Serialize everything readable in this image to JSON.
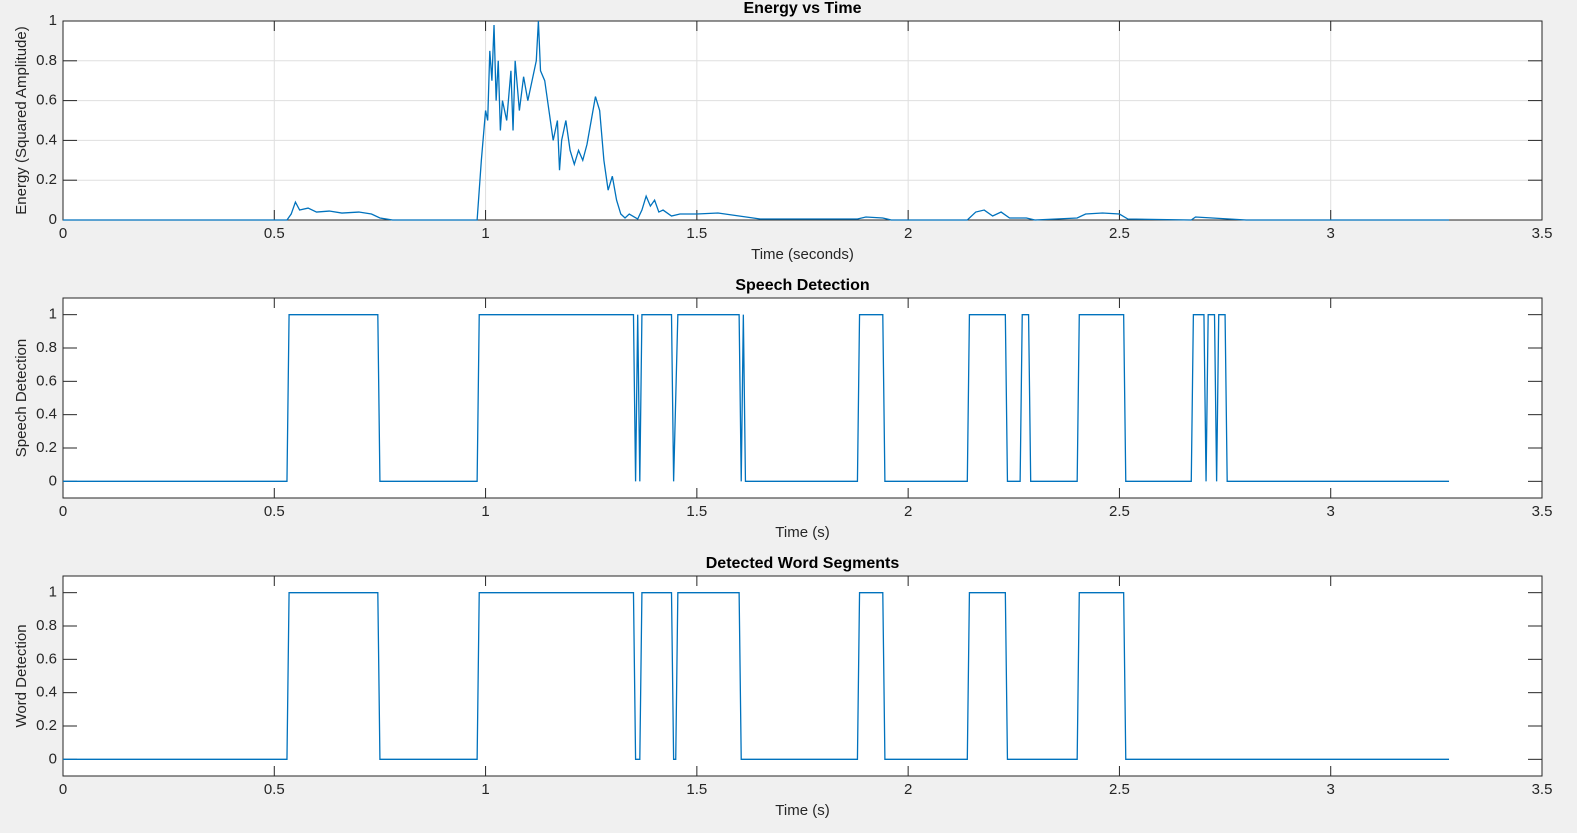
{
  "chart_data": [
    {
      "type": "line",
      "title": "Energy vs Time",
      "xlabel": "Time (seconds)",
      "ylabel": "Energy (Squared Amplitude)",
      "color": "#0072bd",
      "grid": true,
      "xlim": [
        0,
        3.5
      ],
      "xticks": [
        0,
        0.5,
        1,
        1.5,
        2,
        2.5,
        3,
        3.5
      ],
      "ylim": [
        0,
        1
      ],
      "yticks": [
        0,
        0.2,
        0.4,
        0.6,
        0.8,
        1
      ],
      "x": [
        0,
        0.53,
        0.54,
        0.55,
        0.56,
        0.58,
        0.6,
        0.63,
        0.66,
        0.7,
        0.73,
        0.75,
        0.78,
        0.98,
        0.99,
        1.0,
        1.005,
        1.01,
        1.015,
        1.02,
        1.025,
        1.03,
        1.035,
        1.04,
        1.05,
        1.06,
        1.065,
        1.07,
        1.08,
        1.09,
        1.1,
        1.11,
        1.12,
        1.125,
        1.13,
        1.14,
        1.15,
        1.16,
        1.17,
        1.175,
        1.18,
        1.19,
        1.2,
        1.21,
        1.22,
        1.23,
        1.24,
        1.25,
        1.26,
        1.27,
        1.28,
        1.29,
        1.3,
        1.31,
        1.32,
        1.33,
        1.34,
        1.36,
        1.37,
        1.38,
        1.39,
        1.4,
        1.41,
        1.42,
        1.44,
        1.46,
        1.5,
        1.55,
        1.6,
        1.65,
        1.88,
        1.9,
        1.94,
        1.96,
        2.14,
        2.16,
        2.18,
        2.2,
        2.22,
        2.24,
        2.28,
        2.3,
        2.4,
        2.42,
        2.46,
        2.5,
        2.52,
        2.67,
        2.68,
        2.72,
        2.76,
        2.8,
        3.28
      ],
      "values": [
        0,
        0,
        0.03,
        0.09,
        0.05,
        0.06,
        0.04,
        0.045,
        0.035,
        0.04,
        0.03,
        0.01,
        0,
        0,
        0.3,
        0.55,
        0.5,
        0.85,
        0.7,
        0.98,
        0.6,
        0.8,
        0.45,
        0.6,
        0.5,
        0.75,
        0.45,
        0.8,
        0.55,
        0.72,
        0.6,
        0.7,
        0.8,
        1.0,
        0.75,
        0.7,
        0.55,
        0.4,
        0.5,
        0.25,
        0.4,
        0.5,
        0.35,
        0.28,
        0.35,
        0.3,
        0.38,
        0.5,
        0.62,
        0.55,
        0.3,
        0.15,
        0.22,
        0.1,
        0.03,
        0.01,
        0.03,
        0.005,
        0.05,
        0.12,
        0.07,
        0.1,
        0.04,
        0.05,
        0.02,
        0.03,
        0.03,
        0.035,
        0.02,
        0.005,
        0.005,
        0.015,
        0.01,
        0,
        0,
        0.04,
        0.05,
        0.02,
        0.04,
        0.01,
        0.01,
        0,
        0.01,
        0.03,
        0.035,
        0.03,
        0.005,
        0,
        0.015,
        0.01,
        0.005,
        0,
        0
      ]
    },
    {
      "type": "line",
      "title": "Speech Detection",
      "xlabel": "Time (s)",
      "ylabel": "Speech Detection",
      "color": "#0072bd",
      "grid": false,
      "xlim": [
        0,
        3.5
      ],
      "xticks": [
        0,
        0.5,
        1,
        1.5,
        2,
        2.5,
        3,
        3.5
      ],
      "ylim": [
        -0.1,
        1.1
      ],
      "yticks": [
        0,
        0.2,
        0.4,
        0.6,
        0.8,
        1
      ],
      "x": [
        0,
        0.53,
        0.535,
        0.745,
        0.75,
        0.98,
        0.985,
        1.35,
        1.355,
        1.36,
        1.365,
        1.37,
        1.44,
        1.445,
        1.455,
        1.6,
        1.605,
        1.61,
        1.615,
        1.88,
        1.885,
        1.94,
        1.945,
        2.14,
        2.145,
        2.23,
        2.235,
        2.265,
        2.27,
        2.285,
        2.29,
        2.4,
        2.405,
        2.51,
        2.515,
        2.67,
        2.675,
        2.7,
        2.705,
        2.71,
        2.725,
        2.73,
        2.735,
        2.75,
        2.755,
        3.28
      ],
      "values": [
        0,
        0,
        1,
        1,
        0,
        0,
        1,
        1,
        0,
        1,
        0,
        1,
        1,
        0,
        1,
        1,
        0,
        1,
        0,
        0,
        1,
        1,
        0,
        0,
        1,
        1,
        0,
        0,
        1,
        1,
        0,
        0,
        1,
        1,
        0,
        0,
        1,
        1,
        0,
        1,
        1,
        0,
        1,
        1,
        0,
        0
      ]
    },
    {
      "type": "line",
      "title": "Detected Word Segments",
      "xlabel": "Time (s)",
      "ylabel": "Word Detection",
      "color": "#0072bd",
      "grid": false,
      "xlim": [
        0,
        3.5
      ],
      "xticks": [
        0,
        0.5,
        1,
        1.5,
        2,
        2.5,
        3,
        3.5
      ],
      "ylim": [
        -0.1,
        1.1
      ],
      "yticks": [
        0,
        0.2,
        0.4,
        0.6,
        0.8,
        1
      ],
      "x": [
        0,
        0.53,
        0.535,
        0.745,
        0.75,
        0.98,
        0.985,
        1.35,
        1.355,
        1.365,
        1.37,
        1.44,
        1.445,
        1.45,
        1.455,
        1.6,
        1.605,
        1.88,
        1.885,
        1.94,
        1.945,
        2.14,
        2.145,
        2.23,
        2.235,
        2.4,
        2.405,
        2.51,
        2.515,
        3.28
      ],
      "values": [
        0,
        0,
        1,
        1,
        0,
        0,
        1,
        1,
        0,
        0,
        1,
        1,
        0,
        0,
        1,
        1,
        0,
        0,
        1,
        1,
        0,
        0,
        1,
        1,
        0,
        0,
        1,
        1,
        0,
        0
      ]
    }
  ]
}
